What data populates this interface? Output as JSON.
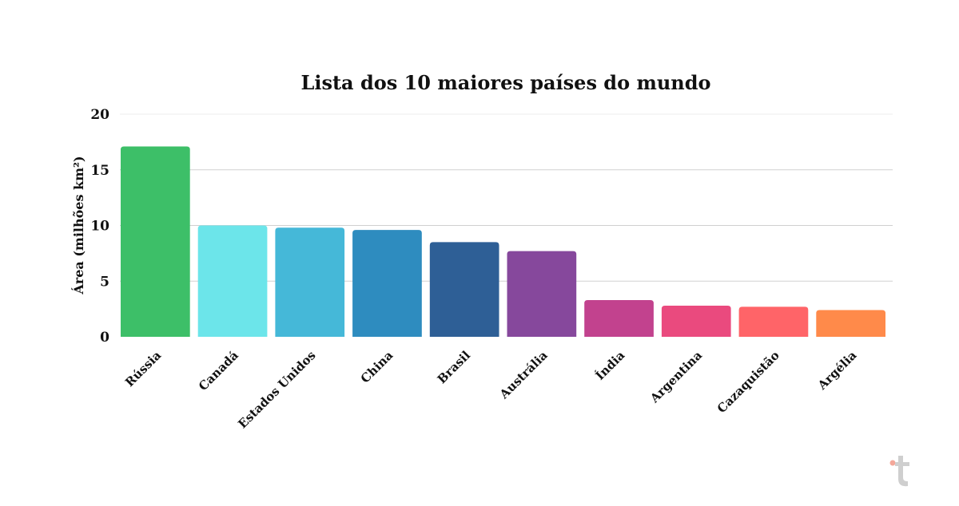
{
  "chart_data": {
    "type": "bar",
    "title": "Lista dos 10 maiores países do mundo",
    "xlabel": "",
    "ylabel": "Área (milhões km²)",
    "ylim": [
      0,
      20
    ],
    "yticks": [
      "0",
      "5",
      "10",
      "15",
      "20"
    ],
    "grid": true,
    "categories": [
      "Rússia",
      "Canadá",
      "Estados Unidos",
      "China",
      "Brasil",
      "Austrália",
      "Índia",
      "Argentina",
      "Cazaquistão",
      "Argélia"
    ],
    "values": [
      17.1,
      10.0,
      9.8,
      9.6,
      8.5,
      7.7,
      3.3,
      2.8,
      2.7,
      2.4
    ],
    "colors": [
      "#3dbf68",
      "#6ce5ea",
      "#45b8d8",
      "#2e8cbf",
      "#2e5f96",
      "#86489c",
      "#c2428e",
      "#ea4a7e",
      "#ff6468",
      "#ff8a4a"
    ]
  },
  "logo": {
    "text": "t",
    "dot_color": "#f4a89a",
    "color": "#cfcfcf"
  }
}
